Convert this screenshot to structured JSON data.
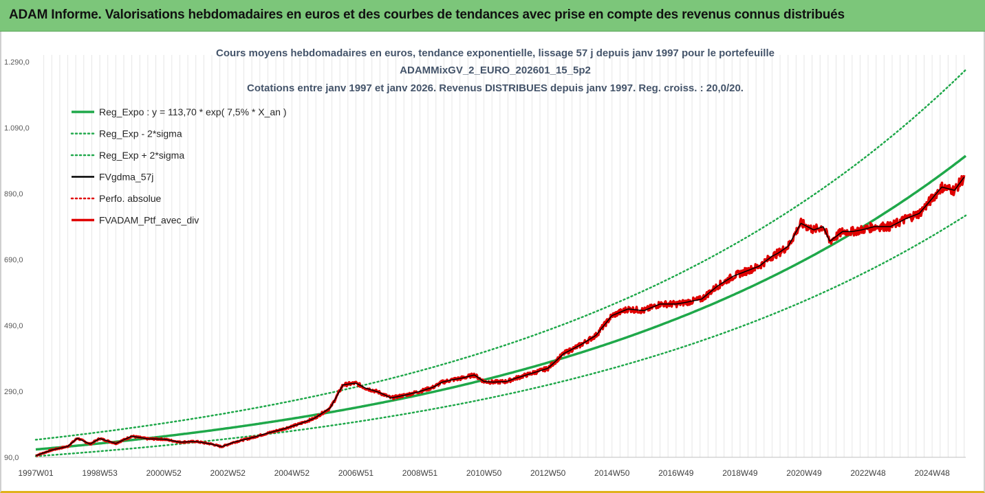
{
  "header": {
    "title": "ADAM Informe. Valorisations hebdomadaires en euros et des courbes de tendances avec prise en compte des revenus connus distribués"
  },
  "chart_data": {
    "type": "line",
    "title_lines": [
      "Cours moyens hebdomadaires  en euros, tendance exponentielle, lissage 57 j depuis janv 1997 pour le portefeuille",
      "ADAMMixGV_2_EURO_202601_15_5p2",
      "Cotations entre janv 1997 et janv 2026. Revenus DISTRIBUES depuis janv 1997. Reg. croiss. : 20,0/20."
    ],
    "xlabel": "",
    "ylabel": "",
    "ylim": [
      90,
      1290
    ],
    "y_ticks": [
      "1.290,0",
      "1.090,0",
      "890,0",
      "690,0",
      "490,0",
      "290,0",
      "90,0"
    ],
    "y_tick_values": [
      1290,
      1090,
      890,
      690,
      490,
      290,
      90
    ],
    "x_range": [
      1997.0,
      2026.05
    ],
    "x_ticks": [
      "1997W01",
      "1998W53",
      "2000W52",
      "2002W52",
      "2004W52",
      "2006W51",
      "2008W51",
      "2010W50",
      "2012W50",
      "2014W50",
      "2016W49",
      "2018W49",
      "2020W49",
      "2022W48",
      "2024W48"
    ],
    "x_tick_values": [
      1997.0,
      1999.0,
      2001.0,
      2003.0,
      2005.0,
      2007.0,
      2009.0,
      2011.0,
      2013.0,
      2015.0,
      2017.0,
      2019.0,
      2021.0,
      2023.0,
      2025.0
    ],
    "grid": "vertical",
    "legend_position": "top-left",
    "trend": {
      "a": 113.7,
      "rate": 0.075,
      "lower_factor": 0.82,
      "upper_factor": 1.26
    },
    "series": [
      {
        "name": "Reg_Expo : y = 113,70 * exp( 7,5% *  X_an )",
        "color": "#1fa84a",
        "style": "solid",
        "width": 3.5
      },
      {
        "name": "Reg_Exp - 2*sigma",
        "color": "#1fa84a",
        "style": "dotted",
        "width": 2.5
      },
      {
        "name": "Reg_Exp + 2*sigma",
        "color": "#1fa84a",
        "style": "dotted",
        "width": 2.5
      },
      {
        "name": "FVgdma_57j",
        "color": "#000000",
        "style": "solid",
        "width": 2.5
      },
      {
        "name": "Perfo. absolue",
        "color": "#e00000",
        "style": "dotted",
        "width": 2.5
      },
      {
        "name": "FVADAM_Ptf_avec_div",
        "color": "#e00000",
        "style": "solid",
        "width": 3.5,
        "x": [
          1997.0,
          1997.5,
          1998.0,
          1998.3,
          1998.7,
          1999.0,
          1999.5,
          2000.0,
          2000.5,
          2001.0,
          2001.5,
          2002.0,
          2002.5,
          2002.8,
          2003.2,
          2003.7,
          2004.2,
          2004.7,
          2005.2,
          2005.7,
          2006.2,
          2006.6,
          2007.0,
          2007.3,
          2007.7,
          2008.1,
          2008.6,
          2009.0,
          2009.4,
          2009.7,
          2010.0,
          2010.3,
          2010.7,
          2011.0,
          2011.3,
          2011.7,
          2012.0,
          2012.5,
          2013.0,
          2013.5,
          2014.0,
          2014.5,
          2015.0,
          2015.5,
          2016.0,
          2016.5,
          2017.0,
          2017.3,
          2017.8,
          2018.3,
          2018.8,
          2019.2,
          2019.6,
          2020.0,
          2020.2,
          2020.5,
          2020.9,
          2021.3,
          2021.6,
          2021.8,
          2022.2,
          2022.5,
          2022.8,
          2023.2,
          2023.7,
          2024.2,
          2024.6,
          2025.0,
          2025.3,
          2025.7,
          2026.0
        ],
        "values": [
          95,
          112,
          123,
          148,
          130,
          147,
          132,
          154,
          146,
          145,
          136,
          138,
          130,
          122,
          136,
          148,
          162,
          175,
          190,
          208,
          240,
          310,
          315,
          300,
          288,
          270,
          280,
          290,
          302,
          318,
          325,
          330,
          340,
          320,
          318,
          320,
          330,
          345,
          360,
          405,
          430,
          460,
          520,
          540,
          535,
          555,
          555,
          560,
          570,
          610,
          640,
          655,
          670,
          700,
          710,
          730,
          800,
          780,
          790,
          745,
          775,
          775,
          780,
          790,
          790,
          815,
          830,
          875,
          910,
          900,
          940
        ]
      }
    ]
  }
}
